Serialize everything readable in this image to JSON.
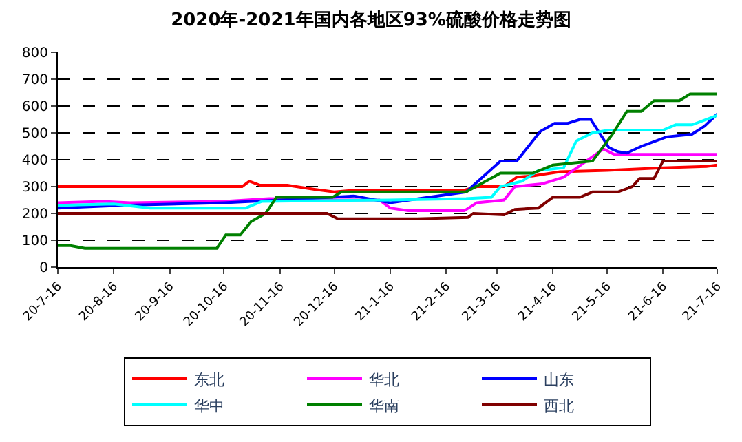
{
  "chart_data": {
    "type": "line",
    "title": "2020年-2021年国内各地区93%硫酸价格走势图",
    "xlim": [
      "2020-07-16",
      "2021-07-16"
    ],
    "xticks": [
      {
        "value": "2020-07-16",
        "label": "20-7-16"
      },
      {
        "value": "2020-08-16",
        "label": "20-8-16"
      },
      {
        "value": "2020-09-16",
        "label": "20-9-16"
      },
      {
        "value": "2020-10-16",
        "label": "20-10-16"
      },
      {
        "value": "2020-11-16",
        "label": "20-11-16"
      },
      {
        "value": "2020-12-16",
        "label": "20-12-16"
      },
      {
        "value": "2021-01-16",
        "label": "21-1-16"
      },
      {
        "value": "2021-02-16",
        "label": "21-2-16"
      },
      {
        "value": "2021-03-16",
        "label": "21-3-16"
      },
      {
        "value": "2021-04-16",
        "label": "21-4-16"
      },
      {
        "value": "2021-05-16",
        "label": "21-5-16"
      },
      {
        "value": "2021-06-16",
        "label": "21-6-16"
      },
      {
        "value": "2021-07-16",
        "label": "21-7-16"
      }
    ],
    "ylim": [
      0,
      800
    ],
    "yticks": [
      0,
      100,
      200,
      300,
      400,
      500,
      600,
      700,
      800
    ],
    "grid": "y",
    "legend": "bottom",
    "marker": "none",
    "line_style": "solid",
    "series": [
      {
        "name": "东北",
        "color": "#ff0000",
        "x": [
          "2020-07-16",
          "2020-10-26",
          "2020-10-30",
          "2020-11-05",
          "2020-11-20",
          "2020-12-05",
          "2020-12-16",
          "2020-12-25",
          "2021-02-25",
          "2021-03-05",
          "2021-03-20",
          "2021-03-27",
          "2021-04-05",
          "2021-04-20",
          "2021-05-16",
          "2021-06-16",
          "2021-07-10",
          "2021-07-16"
        ],
        "values": [
          300,
          300,
          320,
          305,
          305,
          290,
          280,
          285,
          285,
          300,
          300,
          335,
          340,
          355,
          360,
          370,
          375,
          380
        ]
      },
      {
        "name": "华北",
        "color": "#ff00ff",
        "x": [
          "2020-07-16",
          "2020-08-10",
          "2020-08-25",
          "2020-10-16",
          "2020-11-10",
          "2020-12-16",
          "2021-01-10",
          "2021-01-16",
          "2021-01-26",
          "2021-02-26",
          "2021-03-05",
          "2021-03-20",
          "2021-03-26",
          "2021-04-10",
          "2021-04-22",
          "2021-05-14",
          "2021-05-20",
          "2021-07-16"
        ],
        "values": [
          240,
          245,
          240,
          245,
          255,
          250,
          250,
          220,
          210,
          210,
          240,
          250,
          300,
          310,
          335,
          440,
          420,
          420
        ]
      },
      {
        "name": "山东",
        "color": "#0000ff",
        "x": [
          "2020-07-16",
          "2020-08-20",
          "2020-10-16",
          "2020-11-16",
          "2020-12-27",
          "2021-01-16",
          "2021-02-27",
          "2021-03-18",
          "2021-03-27",
          "2021-04-09",
          "2021-04-17",
          "2021-04-24",
          "2021-05-01",
          "2021-05-07",
          "2021-05-17",
          "2021-05-22",
          "2021-05-27",
          "2021-06-04",
          "2021-06-18",
          "2021-07-02",
          "2021-07-09",
          "2021-07-16"
        ],
        "values": [
          220,
          230,
          240,
          250,
          265,
          240,
          280,
          395,
          395,
          505,
          535,
          535,
          550,
          550,
          445,
          430,
          425,
          450,
          485,
          495,
          525,
          570
        ]
      },
      {
        "name": "华中",
        "color": "#00ffff",
        "x": [
          "2020-07-16",
          "2020-08-16",
          "2020-09-05",
          "2020-10-28",
          "2020-11-06",
          "2021-01-16",
          "2021-02-27",
          "2021-03-13",
          "2021-03-18",
          "2021-03-30",
          "2021-04-08",
          "2021-04-22",
          "2021-04-29",
          "2021-05-08",
          "2021-05-17",
          "2021-06-16",
          "2021-06-23",
          "2021-07-02",
          "2021-07-16"
        ],
        "values": [
          230,
          235,
          220,
          220,
          245,
          250,
          255,
          260,
          300,
          320,
          360,
          370,
          470,
          500,
          510,
          510,
          530,
          530,
          565
        ]
      },
      {
        "name": "华南",
        "color": "#008000",
        "x": [
          "2020-07-16",
          "2020-07-23",
          "2020-07-31",
          "2020-10-12",
          "2020-10-17",
          "2020-10-25",
          "2020-10-31",
          "2020-11-08",
          "2020-11-14",
          "2020-12-15",
          "2020-12-20",
          "2021-02-27",
          "2021-03-18",
          "2021-04-05",
          "2021-04-16",
          "2021-05-08",
          "2021-05-19",
          "2021-05-27",
          "2021-06-04",
          "2021-06-11",
          "2021-06-25",
          "2021-07-01",
          "2021-07-16"
        ],
        "values": [
          80,
          80,
          70,
          70,
          120,
          120,
          170,
          200,
          260,
          260,
          280,
          280,
          350,
          350,
          380,
          395,
          495,
          580,
          580,
          620,
          620,
          645,
          645
        ]
      },
      {
        "name": "西北",
        "color": "#800000",
        "x": [
          "2020-07-16",
          "2020-12-12",
          "2020-12-18",
          "2021-01-31",
          "2021-02-28",
          "2021-03-03",
          "2021-03-20",
          "2021-03-26",
          "2021-04-08",
          "2021-04-16",
          "2021-05-01",
          "2021-05-08",
          "2021-05-22",
          "2021-05-30",
          "2021-06-03",
          "2021-06-11",
          "2021-06-16",
          "2021-07-16"
        ],
        "values": [
          200,
          200,
          180,
          180,
          185,
          200,
          195,
          215,
          220,
          260,
          260,
          280,
          280,
          300,
          330,
          330,
          395,
          395
        ]
      }
    ]
  }
}
